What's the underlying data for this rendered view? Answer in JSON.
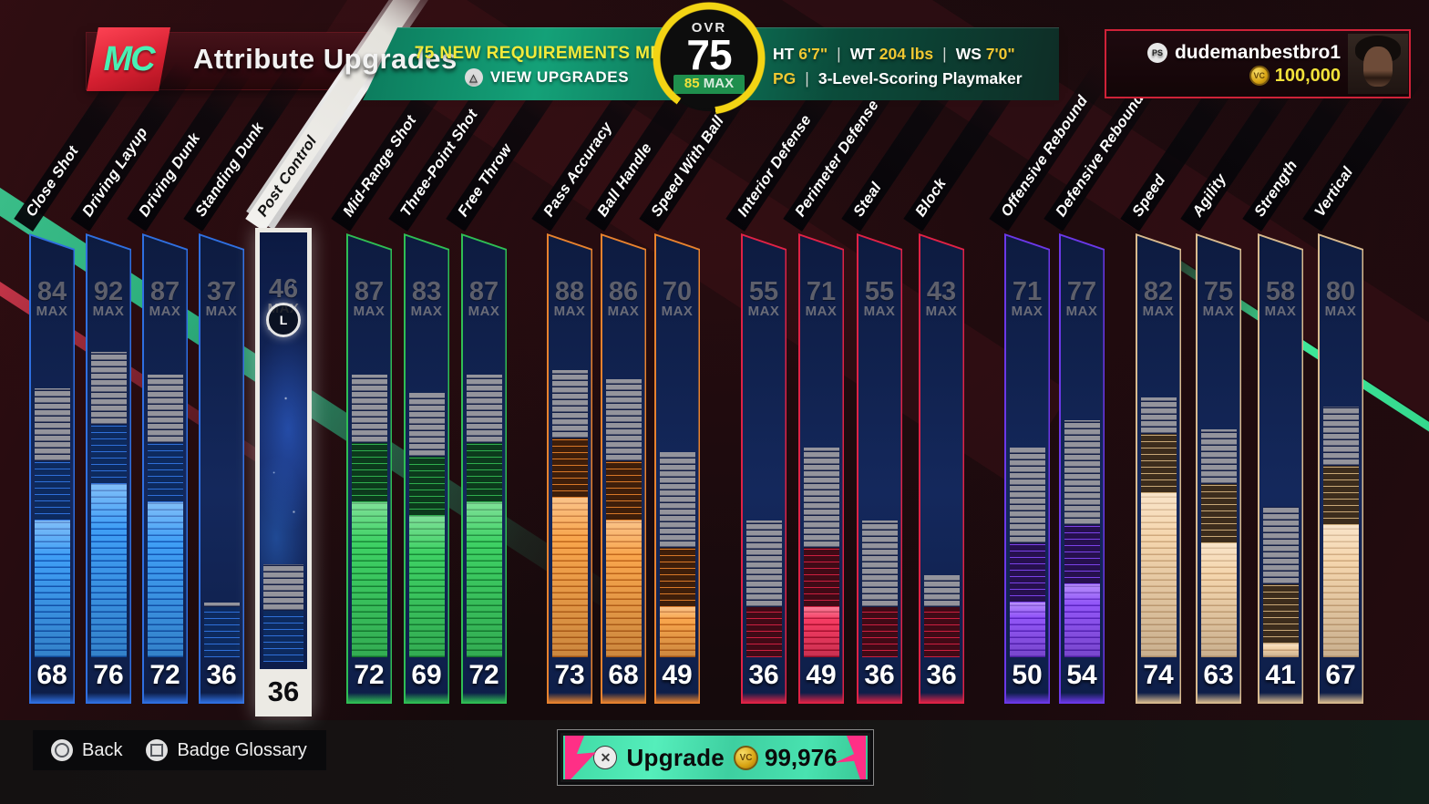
{
  "header": {
    "logo": "MC",
    "title": "Attribute Upgrades",
    "banner": {
      "headline": "75 NEW REQUIREMENTS MET!",
      "action": "VIEW UPGRADES"
    },
    "ovr": {
      "label": "OVR",
      "value": "75",
      "max": "85",
      "max_label": "MAX"
    },
    "bio": {
      "ht_label": "HT",
      "ht": "6'7\"",
      "wt_label": "WT",
      "wt": "204 lbs",
      "ws_label": "WS",
      "ws": "7'0\"",
      "sep": "|",
      "position": "PG",
      "archetype": "3-Level-Scoring Playmaker"
    },
    "profile": {
      "username": "dudemanbestbro1",
      "vc_balance": "100,000",
      "vc_icon_label": "VC"
    }
  },
  "scale": {
    "min": 25,
    "max": 99
  },
  "groups": {
    "finishing": {
      "accent": "#2f6fe0",
      "bright": "#3f9ef5",
      "stripe": "#1358b8",
      "darkbg": "#0d2a5e",
      "darkline": "#2f6fd8"
    },
    "shooting": {
      "accent": "#2fbe54",
      "bright": "#3ed164",
      "stripe": "#178a36",
      "darkbg": "#0c3a1c",
      "darkline": "#2fae4e"
    },
    "playmaking": {
      "accent": "#e8822e",
      "bright": "#f8a54c",
      "stripe": "#c2661a",
      "darkbg": "#3e1e0a",
      "darkline": "#d87828"
    },
    "defense": {
      "accent": "#e02246",
      "bright": "#f53b62",
      "stripe": "#b01030",
      "darkbg": "#400a16",
      "darkline": "#cc1f40"
    },
    "rebounding": {
      "accent": "#6b38e8",
      "bright": "#9256f8",
      "stripe": "#5c24c4",
      "darkbg": "#26104e",
      "darkline": "#7a42e8"
    },
    "physicals": {
      "accent": "#d8ba8e",
      "bright": "#f5d6ae",
      "stripe": "#cfa87c",
      "darkbg": "#3c2c1c",
      "darkline": "#c8a878"
    }
  },
  "attributes": [
    {
      "label": "Close Shot",
      "max": 84,
      "current": 68,
      "group": "finishing",
      "selected": false
    },
    {
      "label": "Driving Layup",
      "max": 92,
      "current": 76,
      "group": "finishing",
      "selected": false
    },
    {
      "label": "Driving Dunk",
      "max": 87,
      "current": 72,
      "group": "finishing",
      "selected": false
    },
    {
      "label": "Standing Dunk",
      "max": 37,
      "current": 36,
      "group": "finishing",
      "selected": false
    },
    {
      "label": "Post Control",
      "max": 46,
      "current": 36,
      "group": "finishing",
      "selected": true
    },
    {
      "label": "Mid-Range Shot",
      "max": 87,
      "current": 72,
      "group": "shooting",
      "selected": false
    },
    {
      "label": "Three-Point Shot",
      "max": 83,
      "current": 69,
      "group": "shooting",
      "selected": false
    },
    {
      "label": "Free Throw",
      "max": 87,
      "current": 72,
      "group": "shooting",
      "selected": false
    },
    {
      "label": "Pass Accuracy",
      "max": 88,
      "current": 73,
      "group": "playmaking",
      "selected": false
    },
    {
      "label": "Ball Handle",
      "max": 86,
      "current": 68,
      "group": "playmaking",
      "selected": false
    },
    {
      "label": "Speed With Ball",
      "max": 70,
      "current": 49,
      "group": "playmaking",
      "selected": false
    },
    {
      "label": "Interior Defense",
      "max": 55,
      "current": 36,
      "group": "defense",
      "selected": false
    },
    {
      "label": "Perimeter Defense",
      "max": 71,
      "current": 49,
      "group": "defense",
      "selected": false
    },
    {
      "label": "Steal",
      "max": 55,
      "current": 36,
      "group": "defense",
      "selected": false
    },
    {
      "label": "Block",
      "max": 43,
      "current": 36,
      "group": "defense",
      "selected": false
    },
    {
      "label": "Offensive Rebound",
      "max": 71,
      "current": 50,
      "group": "rebounding",
      "selected": false
    },
    {
      "label": "Defensive Rebound",
      "max": 77,
      "current": 54,
      "group": "rebounding",
      "selected": false
    },
    {
      "label": "Speed",
      "max": 82,
      "current": 74,
      "group": "physicals",
      "selected": false
    },
    {
      "label": "Agility",
      "max": 75,
      "current": 63,
      "group": "physicals",
      "selected": false
    },
    {
      "label": "Strength",
      "max": 58,
      "current": 41,
      "group": "physicals",
      "selected": false
    },
    {
      "label": "Vertical",
      "max": 80,
      "current": 67,
      "group": "physicals",
      "selected": false
    }
  ],
  "footer": {
    "back_label": "Back",
    "glossary_label": "Badge Glossary",
    "upgrade_label": "Upgrade",
    "upgrade_cost": "99,976"
  }
}
